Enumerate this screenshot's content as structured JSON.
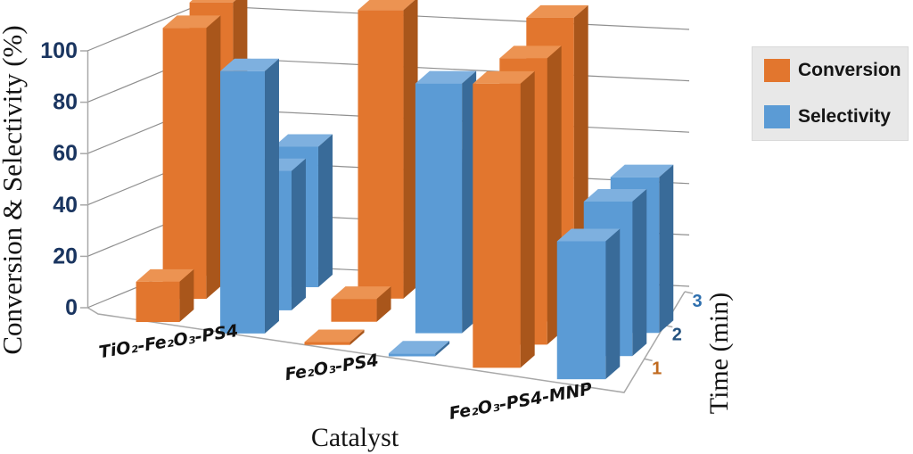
{
  "figure": {
    "y_axis_title": "Conversion & Selectivity (%)",
    "x_axis_title": "Catalyst",
    "z_axis_title": "Time (min)"
  },
  "legend": {
    "items": [
      {
        "label": "Conversion",
        "color": "#E2762E"
      },
      {
        "label": "Selectivity",
        "color": "#5B9BD5"
      }
    ]
  },
  "style": {
    "grid_color": "#8f8f8f",
    "axis_color": "#a8a8a8",
    "ytick_color": "#1a3560",
    "ztick_colors": [
      "#c06a1f",
      "#24527f",
      "#2e6fae"
    ],
    "catalyst_label_color": "#121212",
    "legend_bg": "#e8e8e8",
    "legend_border": "#dadada",
    "bar_faces": [
      {
        "front": "#E2762E",
        "top": "#EC9352",
        "side": "#A9561B"
      },
      {
        "front": "#5B9BD5",
        "top": "#7EB0DF",
        "side": "#396B99"
      }
    ]
  },
  "chart_data": {
    "type": "bar",
    "projection": "3d",
    "title": "",
    "xlabel": "Catalyst",
    "ylabel": "Conversion & Selectivity (%)",
    "zlabel": "Time (min)",
    "categories": [
      "TiO₂-Fe₂O₃-PS4",
      "Fe₂O₃-PS4",
      "Fe₂O₃-PS4-MNP"
    ],
    "time_min": [
      1,
      2,
      3
    ],
    "series": [
      {
        "name": "Conversion",
        "color": "#E2762E",
        "values_by_catalyst": [
          [
            15,
            100,
            100
          ],
          [
            1,
            8,
            100
          ],
          [
            95,
            95,
            100
          ]
        ]
      },
      {
        "name": "Selectivity",
        "color": "#5B9BD5",
        "values_by_catalyst": [
          [
            95,
            50,
            50
          ],
          [
            1,
            85,
            50
          ],
          [
            45,
            50,
            50
          ]
        ]
      }
    ],
    "ylim": [
      0,
      100
    ],
    "yticks": [
      0,
      20,
      40,
      60,
      80,
      100
    ],
    "ztick_labels": [
      "1",
      "2",
      "3"
    ],
    "grid": true,
    "legend_position": "right"
  }
}
